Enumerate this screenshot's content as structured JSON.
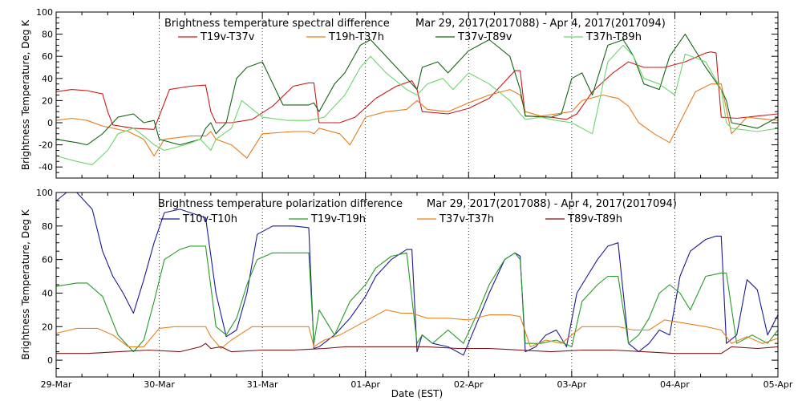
{
  "xlabel": "Date (EST)",
  "x_ticks": [
    "29-Mar",
    "30-Mar",
    "31-Mar",
    "01-Apr",
    "02-Apr",
    "03-Apr",
    "04-Apr",
    "05-Apr"
  ],
  "chart_data": [
    {
      "type": "line",
      "title": "Brightness temperature spectral difference",
      "date_range": "Mar 29, 2017(2017088) - Apr  4, 2017(2017094)",
      "ylabel": "Brightness Temperature, Deg K",
      "ylim": [
        -50,
        100
      ],
      "yticks": [
        -40,
        -20,
        0,
        20,
        40,
        60,
        80,
        100
      ],
      "xlim": [
        0,
        7
      ],
      "grid": "vertical dotted at each day",
      "series": [
        {
          "name": "T19v-T37v",
          "color": "#cc1a1a",
          "x": [
            0,
            0.15,
            0.3,
            0.45,
            0.5,
            0.55,
            0.75,
            0.95,
            1.1,
            1.3,
            1.45,
            1.5,
            1.55,
            1.7,
            1.9,
            2.1,
            2.3,
            2.45,
            2.5,
            2.55,
            2.75,
            2.9,
            3.1,
            3.3,
            3.45,
            3.5,
            3.55,
            3.8,
            4.0,
            4.2,
            4.35,
            4.45,
            4.5,
            4.55,
            4.8,
            4.95,
            5.05,
            5.2,
            5.4,
            5.55,
            5.7,
            5.9,
            6.1,
            6.3,
            6.35,
            6.4,
            6.45,
            6.6,
            6.8,
            7.0
          ],
          "y": [
            28,
            30,
            29,
            26,
            10,
            -2,
            -5,
            -6,
            30,
            33,
            34,
            10,
            0,
            0,
            3,
            15,
            33,
            36,
            36,
            0,
            0,
            5,
            22,
            33,
            38,
            30,
            10,
            8,
            13,
            22,
            37,
            47,
            47,
            6,
            5,
            3,
            8,
            28,
            45,
            55,
            50,
            50,
            55,
            63,
            64,
            63,
            5,
            4,
            6,
            8
          ]
        },
        {
          "name": "T19h-T37h",
          "color": "#e87a1c",
          "x": [
            0,
            0.15,
            0.3,
            0.45,
            0.55,
            0.7,
            0.85,
            0.95,
            1.05,
            1.3,
            1.45,
            1.5,
            1.55,
            1.7,
            1.85,
            2.0,
            2.3,
            2.45,
            2.5,
            2.55,
            2.75,
            2.85,
            3.0,
            3.2,
            3.4,
            3.5,
            3.6,
            3.8,
            4.0,
            4.2,
            4.4,
            4.5,
            4.55,
            4.7,
            4.85,
            5.0,
            5.1,
            5.3,
            5.45,
            5.55,
            5.65,
            5.8,
            5.95,
            6.2,
            6.35,
            6.45,
            6.55,
            6.7,
            6.9,
            7.0
          ],
          "y": [
            2,
            4,
            2,
            -3,
            -5,
            -8,
            -15,
            -30,
            -15,
            -12,
            -12,
            -8,
            -15,
            -20,
            -32,
            -10,
            -8,
            -8,
            -10,
            -5,
            -10,
            -20,
            5,
            10,
            12,
            20,
            12,
            10,
            18,
            25,
            30,
            25,
            10,
            6,
            8,
            10,
            20,
            25,
            22,
            15,
            0,
            -10,
            -18,
            28,
            35,
            35,
            -10,
            5,
            3,
            2
          ]
        },
        {
          "name": "T37v-T89v",
          "color": "#146414",
          "x": [
            0,
            0.2,
            0.3,
            0.45,
            0.5,
            0.6,
            0.75,
            0.85,
            0.95,
            1.0,
            1.2,
            1.4,
            1.45,
            1.5,
            1.55,
            1.65,
            1.75,
            1.85,
            2.0,
            2.2,
            2.45,
            2.5,
            2.55,
            2.7,
            2.8,
            2.95,
            3.05,
            3.2,
            3.35,
            3.45,
            3.5,
            3.55,
            3.7,
            3.8,
            4.0,
            4.2,
            4.4,
            4.5,
            4.55,
            4.8,
            4.9,
            5.0,
            5.1,
            5.2,
            5.35,
            5.5,
            5.6,
            5.7,
            5.85,
            5.95,
            6.1,
            6.3,
            6.45,
            6.5,
            6.55,
            6.8,
            7.0
          ],
          "y": [
            -15,
            -18,
            -20,
            -10,
            -5,
            5,
            8,
            0,
            2,
            -15,
            -20,
            -15,
            -5,
            0,
            -10,
            0,
            40,
            50,
            55,
            16,
            16,
            18,
            10,
            35,
            45,
            70,
            75,
            60,
            45,
            35,
            30,
            50,
            55,
            45,
            65,
            75,
            60,
            30,
            6,
            5,
            8,
            40,
            45,
            25,
            70,
            75,
            60,
            35,
            30,
            60,
            80,
            50,
            30,
            20,
            0,
            -5,
            5
          ]
        },
        {
          "name": "T37h-T89h",
          "color": "#6bd66b",
          "x": [
            0,
            0.2,
            0.35,
            0.5,
            0.6,
            0.75,
            0.85,
            0.95,
            1.05,
            1.25,
            1.4,
            1.5,
            1.55,
            1.7,
            1.8,
            2.0,
            2.25,
            2.45,
            2.5,
            2.6,
            2.8,
            2.95,
            3.05,
            3.2,
            3.4,
            3.5,
            3.6,
            3.75,
            3.85,
            4.0,
            4.2,
            4.4,
            4.5,
            4.55,
            4.7,
            4.85,
            5.0,
            5.1,
            5.2,
            5.35,
            5.5,
            5.6,
            5.7,
            5.85,
            6.0,
            6.1,
            6.3,
            6.45,
            6.5,
            6.55,
            6.8,
            7.0
          ],
          "y": [
            -30,
            -35,
            -38,
            -25,
            -10,
            -5,
            -12,
            -20,
            -25,
            -20,
            -15,
            -25,
            -15,
            -5,
            20,
            5,
            2,
            2,
            3,
            5,
            25,
            50,
            60,
            45,
            30,
            25,
            35,
            40,
            30,
            45,
            35,
            20,
            8,
            3,
            5,
            2,
            0,
            -5,
            -10,
            55,
            70,
            60,
            40,
            35,
            25,
            62,
            55,
            30,
            0,
            -5,
            -8,
            -5
          ]
        }
      ]
    },
    {
      "type": "line",
      "title": "Brightness temperature polarization difference",
      "date_range": "Mar 29, 2017(2017088) - Apr  4, 2017(2017094)",
      "ylabel": "Brightness Temperature, Deg K",
      "ylim": [
        -10,
        100
      ],
      "yticks": [
        0,
        20,
        40,
        60,
        80,
        100
      ],
      "xlim": [
        0,
        7
      ],
      "grid": "vertical dotted at each day",
      "series": [
        {
          "name": "T10v-T10h",
          "color": "#1a1a99",
          "x": [
            0,
            0.1,
            0.2,
            0.35,
            0.45,
            0.55,
            0.65,
            0.75,
            0.85,
            0.95,
            1.05,
            1.2,
            1.3,
            1.45,
            1.55,
            1.65,
            1.75,
            1.85,
            1.95,
            2.1,
            2.3,
            2.45,
            2.5,
            2.55,
            2.7,
            2.85,
            3.0,
            3.1,
            3.25,
            3.4,
            3.45,
            3.5,
            3.55,
            3.65,
            3.8,
            3.95,
            4.1,
            4.2,
            4.35,
            4.45,
            4.5,
            4.55,
            4.65,
            4.75,
            4.85,
            4.95,
            5.05,
            5.15,
            5.25,
            5.35,
            5.45,
            5.55,
            5.65,
            5.75,
            5.85,
            5.95,
            6.05,
            6.15,
            6.3,
            6.4,
            6.45,
            6.5,
            6.6,
            6.7,
            6.8,
            6.9,
            7.0
          ],
          "y": [
            95,
            100,
            100,
            90,
            65,
            50,
            40,
            28,
            48,
            70,
            88,
            90,
            88,
            85,
            40,
            14,
            18,
            40,
            75,
            80,
            80,
            79,
            7,
            8,
            15,
            25,
            38,
            50,
            60,
            66,
            66,
            5,
            15,
            10,
            8,
            3,
            25,
            40,
            60,
            64,
            62,
            5,
            8,
            15,
            18,
            8,
            40,
            50,
            60,
            68,
            70,
            10,
            5,
            10,
            18,
            15,
            50,
            65,
            72,
            74,
            74,
            10,
            15,
            48,
            42,
            15,
            27
          ]
        },
        {
          "name": "T19v-T19h",
          "color": "#249c24",
          "x": [
            0,
            0.2,
            0.3,
            0.45,
            0.6,
            0.75,
            0.85,
            0.95,
            1.05,
            1.2,
            1.3,
            1.45,
            1.55,
            1.65,
            1.75,
            1.85,
            1.95,
            2.1,
            2.3,
            2.45,
            2.5,
            2.55,
            2.7,
            2.85,
            3.0,
            3.1,
            3.25,
            3.4,
            3.5,
            3.55,
            3.65,
            3.8,
            3.95,
            4.1,
            4.2,
            4.35,
            4.45,
            4.5,
            4.55,
            4.7,
            4.85,
            5.0,
            5.1,
            5.25,
            5.35,
            5.45,
            5.55,
            5.65,
            5.75,
            5.85,
            5.95,
            6.05,
            6.15,
            6.3,
            6.45,
            6.5,
            6.6,
            6.75,
            6.9,
            7.0
          ],
          "y": [
            44,
            46,
            46,
            38,
            15,
            5,
            12,
            35,
            60,
            66,
            68,
            68,
            20,
            15,
            25,
            45,
            60,
            64,
            64,
            64,
            10,
            30,
            15,
            35,
            45,
            55,
            62,
            64,
            10,
            15,
            10,
            18,
            10,
            30,
            45,
            60,
            64,
            60,
            10,
            10,
            12,
            8,
            35,
            45,
            50,
            50,
            10,
            15,
            25,
            40,
            45,
            40,
            30,
            50,
            52,
            52,
            10,
            15,
            10,
            18
          ]
        },
        {
          "name": "T37v-T37h",
          "color": "#e8821c",
          "x": [
            0,
            0.2,
            0.4,
            0.55,
            0.7,
            0.85,
            1.0,
            1.15,
            1.3,
            1.45,
            1.5,
            1.6,
            1.7,
            1.9,
            2.1,
            2.3,
            2.45,
            2.5,
            2.6,
            2.75,
            2.9,
            3.05,
            3.2,
            3.35,
            3.45,
            3.5,
            3.6,
            3.8,
            4.0,
            4.2,
            4.4,
            4.5,
            4.6,
            4.75,
            4.9,
            5.1,
            5.3,
            5.45,
            5.6,
            5.75,
            5.9,
            6.1,
            6.3,
            6.45,
            6.55,
            6.7,
            6.85,
            7.0
          ],
          "y": [
            16,
            19,
            19,
            15,
            8,
            8,
            19,
            20,
            20,
            20,
            14,
            7,
            12,
            20,
            20,
            20,
            20,
            8,
            12,
            15,
            20,
            25,
            30,
            28,
            28,
            27,
            25,
            25,
            24,
            27,
            27,
            26,
            8,
            12,
            10,
            20,
            20,
            20,
            18,
            18,
            24,
            22,
            20,
            18,
            10,
            14,
            10,
            13
          ]
        },
        {
          "name": "T89v-T89h",
          "color": "#7a1414",
          "x": [
            0,
            0.3,
            0.6,
            0.9,
            1.2,
            1.4,
            1.45,
            1.5,
            1.6,
            1.7,
            2.0,
            2.3,
            2.6,
            2.8,
            3.0,
            3.3,
            3.6,
            3.9,
            4.2,
            4.5,
            4.8,
            5.1,
            5.4,
            5.7,
            6.0,
            6.3,
            6.45,
            6.55,
            6.8,
            7.0
          ],
          "y": [
            4,
            4,
            5,
            6,
            5,
            8,
            10,
            7,
            8,
            5,
            6,
            6,
            7,
            8,
            8,
            8,
            8,
            7,
            7,
            6,
            5,
            6,
            6,
            5,
            4,
            4,
            4,
            8,
            7,
            8
          ]
        }
      ]
    }
  ]
}
